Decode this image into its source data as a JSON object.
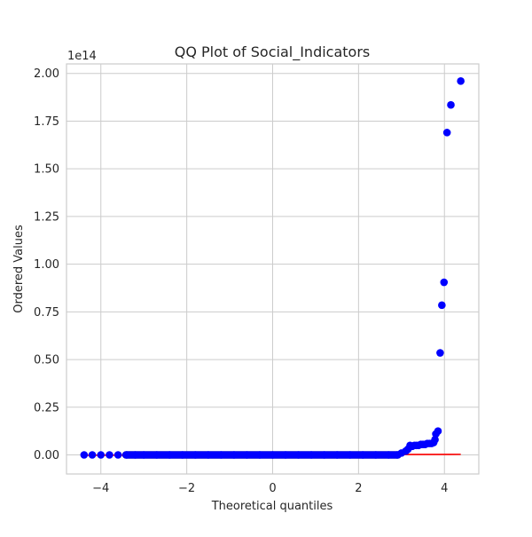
{
  "chart_data": {
    "type": "scatter",
    "title": "QQ Plot of Social_Indicators",
    "xlabel": "Theoretical quantiles",
    "ylabel": "Ordered Values",
    "y_offset_label": "1e14",
    "xlim": [
      -4.8,
      4.8
    ],
    "ylim": [
      -10000000000000.0,
      205000000000000.0
    ],
    "x_ticks": [
      -4,
      -2,
      0,
      2,
      4
    ],
    "x_tick_labels": [
      "−4",
      "−2",
      "0",
      "2",
      "4"
    ],
    "y_ticks": [
      0,
      25000000000000.0,
      50000000000000.0,
      75000000000000.0,
      100000000000000.0,
      125000000000000.0,
      150000000000000.0,
      175000000000000.0,
      200000000000000.0
    ],
    "y_tick_labels": [
      "0.00",
      "0.25",
      "0.50",
      "0.75",
      "1.00",
      "1.25",
      "1.50",
      "1.75",
      "2.00"
    ],
    "grid": true,
    "series": [
      {
        "marker_color": "#0000ff",
        "points": [
          [
            -4.39,
            0
          ],
          [
            -4.2,
            0
          ],
          [
            -4.0,
            0
          ],
          [
            -3.8,
            0
          ],
          [
            -3.6,
            0
          ],
          [
            -3.4,
            0
          ],
          [
            -3.2,
            0
          ],
          [
            -3.0,
            0
          ],
          [
            -2.7,
            0
          ],
          [
            -2.4,
            0
          ],
          [
            -2.1,
            0
          ],
          [
            -1.8,
            0
          ],
          [
            -1.5,
            0
          ],
          [
            -1.2,
            0
          ],
          [
            -0.9,
            0
          ],
          [
            -0.6,
            0
          ],
          [
            -0.3,
            0
          ],
          [
            0,
            0
          ],
          [
            0.3,
            0
          ],
          [
            0.6,
            0
          ],
          [
            0.9,
            0
          ],
          [
            1.2,
            0
          ],
          [
            1.5,
            0
          ],
          [
            1.8,
            0
          ],
          [
            2.1,
            0
          ],
          [
            2.4,
            0
          ],
          [
            2.7,
            0
          ],
          [
            2.9,
            0
          ],
          [
            3.0,
            1000000000000.0
          ],
          [
            3.1,
            2000000000000.0
          ],
          [
            3.15,
            3000000000000.0
          ],
          [
            3.2,
            5000000000000.0
          ],
          [
            3.25,
            4500000000000.0
          ],
          [
            3.3,
            5000000000000.0
          ],
          [
            3.35,
            5000000000000.0
          ],
          [
            3.4,
            5000000000000.0
          ],
          [
            3.45,
            5500000000000.0
          ],
          [
            3.5,
            5500000000000.0
          ],
          [
            3.55,
            5500000000000.0
          ],
          [
            3.6,
            6000000000000.0
          ],
          [
            3.65,
            6000000000000.0
          ],
          [
            3.7,
            6000000000000.0
          ],
          [
            3.75,
            6500000000000.0
          ],
          [
            3.78,
            8000000000000.0
          ],
          [
            3.8,
            11000000000000.0
          ],
          [
            3.85,
            12500000000000.0
          ],
          [
            3.9,
            53500000000000.0
          ],
          [
            3.94,
            78500000000000.0
          ],
          [
            3.99,
            90500000000000.0
          ],
          [
            4.06,
            169000000000000.0
          ],
          [
            4.15,
            183500000000000.0
          ],
          [
            4.38,
            196000000000000.0
          ]
        ]
      },
      {
        "line_color": "#ff0000",
        "fit_line": [
          [
            -4.39,
            -200000000000.0
          ],
          [
            4.38,
            300000000000.0
          ]
        ]
      }
    ]
  }
}
